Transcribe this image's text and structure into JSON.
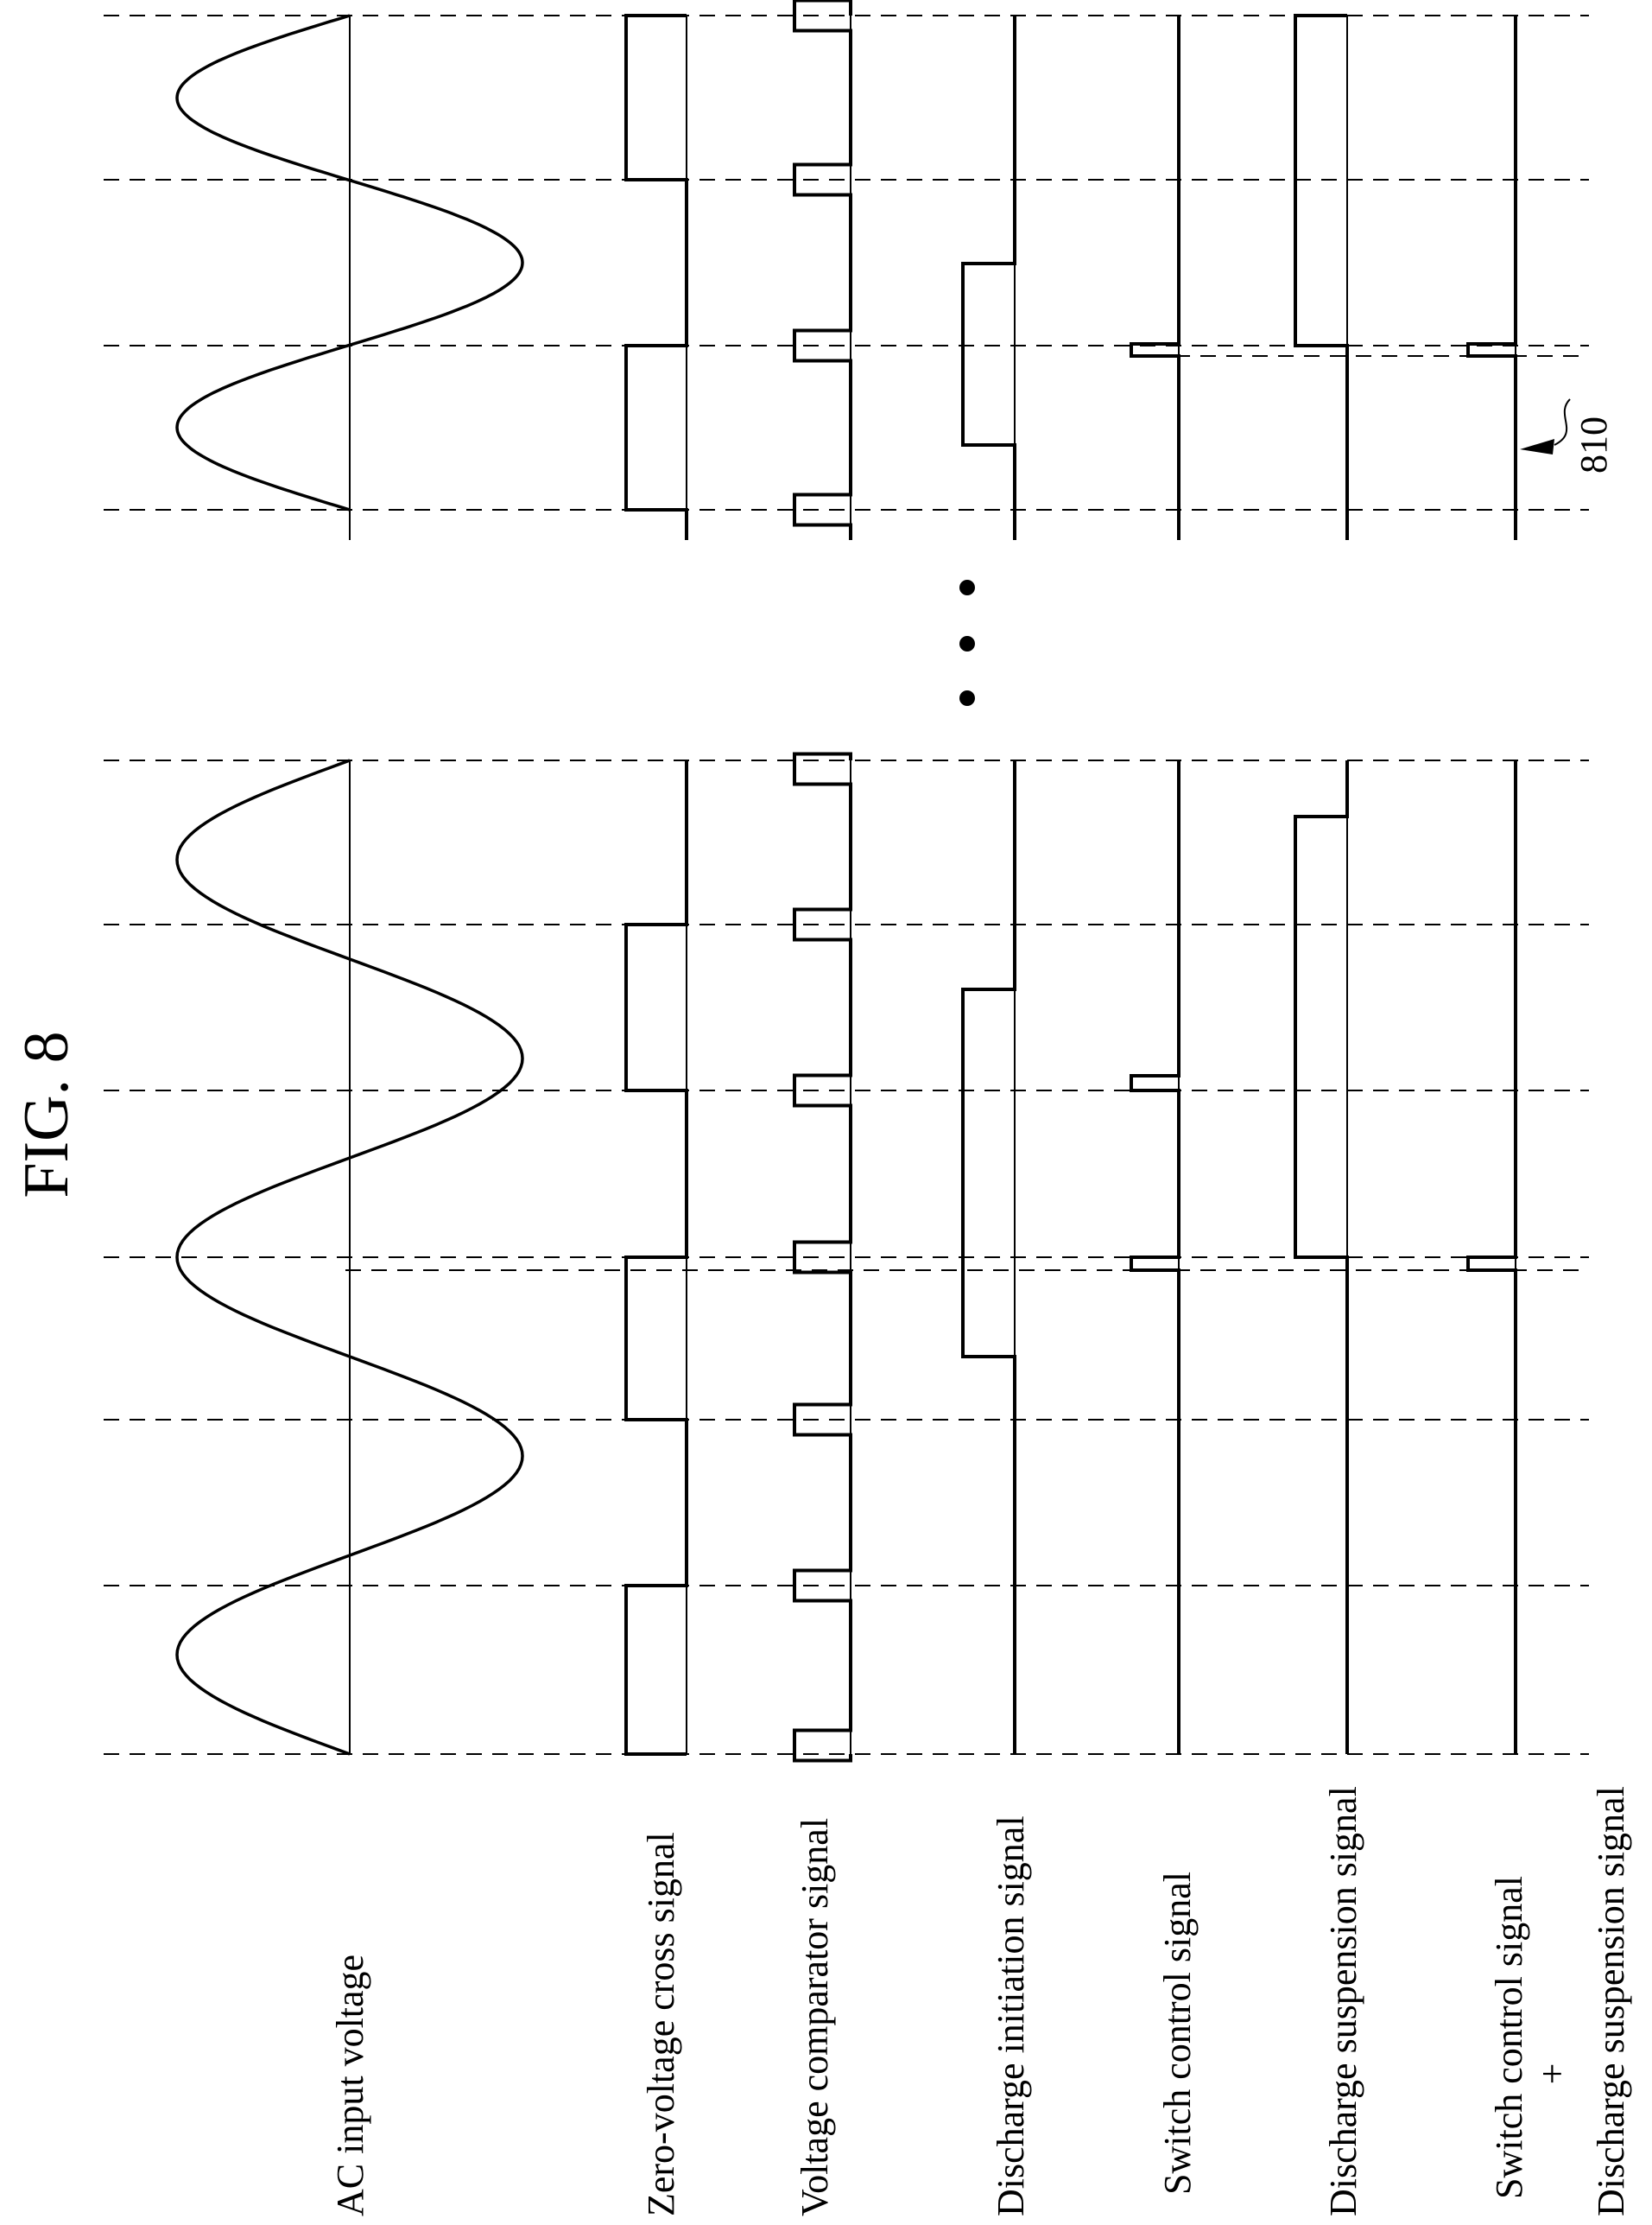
{
  "figure": {
    "title": "FIG. 8",
    "reference_numeral": "810",
    "ellipsis": "• • •"
  },
  "signals": [
    {
      "id": "ac-input-voltage",
      "label_lines": [
        "AC input voltage"
      ]
    },
    {
      "id": "zero-voltage-cross-signal",
      "label_lines": [
        "Zero-voltage cross signal"
      ]
    },
    {
      "id": "voltage-comparator-signal",
      "label_lines": [
        "Voltage comparator signal"
      ]
    },
    {
      "id": "discharge-initiation-signal",
      "label_lines": [
        "Discharge initiation signal"
      ]
    },
    {
      "id": "switch-control-signal",
      "label_lines": [
        "Switch control signal"
      ]
    },
    {
      "id": "discharge-suspension-signal",
      "label_lines": [
        "Discharge suspension signal"
      ]
    },
    {
      "id": "switch-control-plus-discharge-suspension-signal",
      "label_lines": [
        "Switch control signal",
        "+",
        "Discharge suspension signal"
      ]
    }
  ],
  "colors": {
    "ink": "#000000",
    "paper": "#ffffff"
  }
}
